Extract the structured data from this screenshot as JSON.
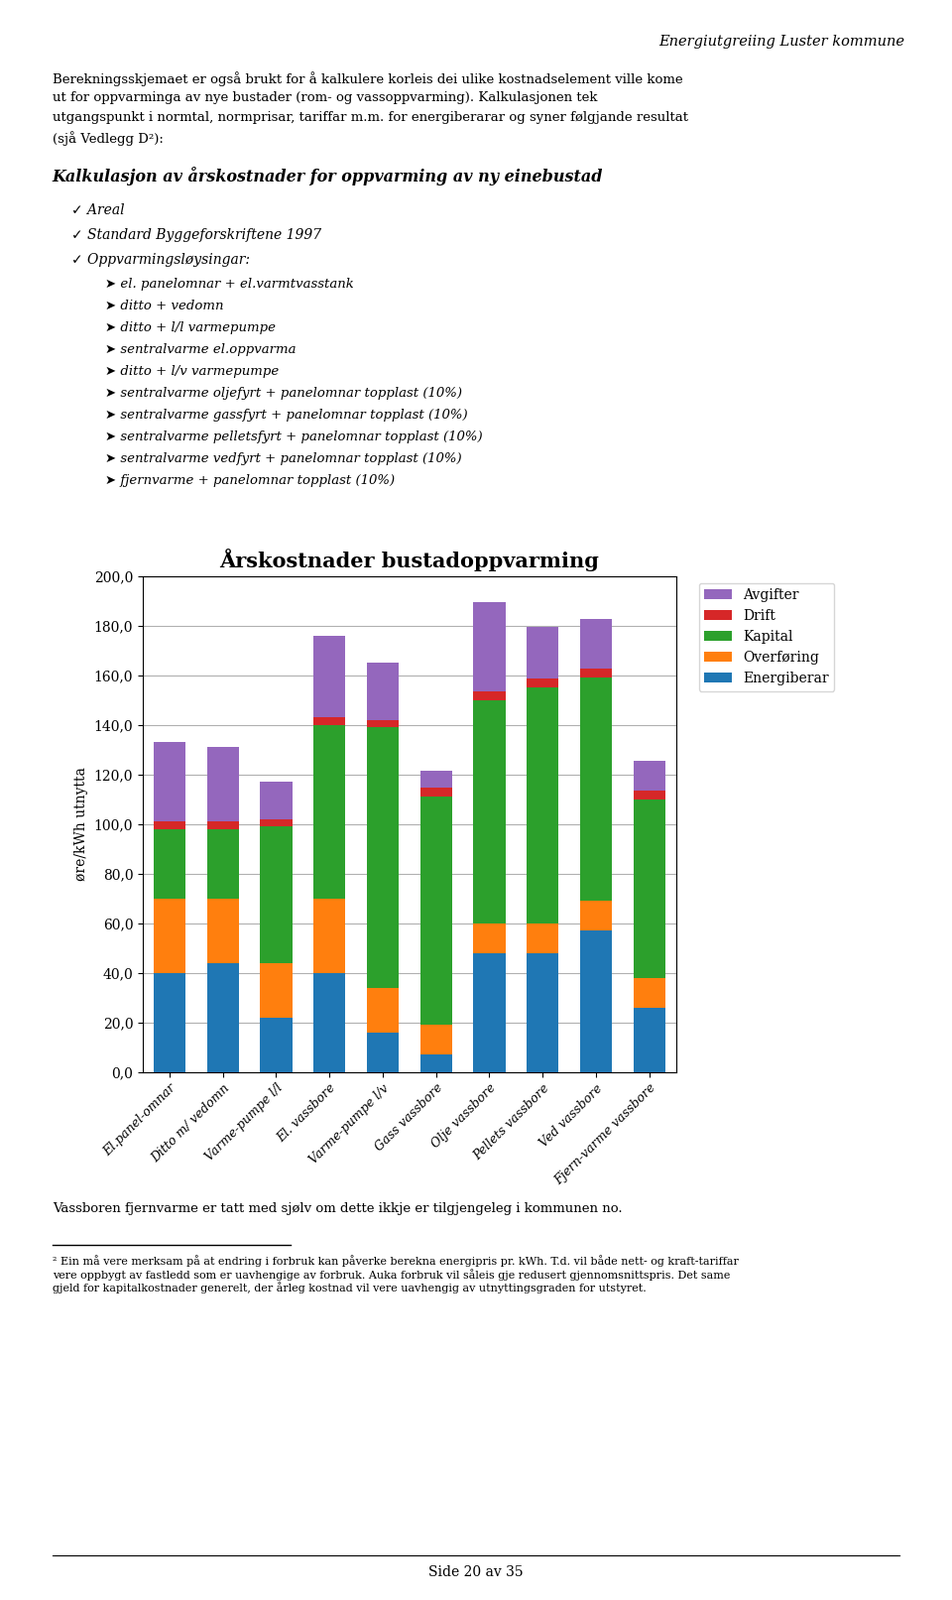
{
  "chart_data": {
    "type": "bar",
    "stacked": true,
    "title": "Årskostnader bustadoppvarming",
    "ylabel": "øre/kWh utnytta",
    "categories": [
      "El.panel-omnar",
      "Ditto m/ vedomn",
      "Varme-pumpe l/l",
      "El. vassbore",
      "Varme-pumpe l/v",
      "Gass vassbore",
      "Olje vassbore",
      "Pellets vassbore",
      "Ved vassbore",
      "Fjern-varme vassbore"
    ],
    "series": [
      {
        "name": "Energiberar",
        "values": [
          40.0,
          44.0,
          22.0,
          40.0,
          16.0,
          7.0,
          48.0,
          48.0,
          57.0,
          26.0
        ]
      },
      {
        "name": "Overføring",
        "values": [
          30.0,
          26.0,
          22.0,
          30.0,
          18.0,
          12.0,
          12.0,
          12.0,
          12.0,
          12.0
        ]
      },
      {
        "name": "Kapital",
        "values": [
          28.0,
          28.0,
          55.0,
          70.0,
          105.0,
          92.0,
          90.0,
          95.0,
          90.0,
          72.0
        ]
      },
      {
        "name": "Drift",
        "values": [
          3.0,
          3.0,
          3.0,
          3.0,
          3.0,
          3.5,
          3.5,
          3.5,
          3.5,
          3.5
        ]
      },
      {
        "name": "Avgifter",
        "values": [
          32.0,
          30.0,
          15.0,
          33.0,
          23.0,
          7.0,
          36.0,
          21.0,
          20.0,
          12.0
        ]
      }
    ],
    "ylim": [
      0,
      200
    ],
    "yticks": [
      {
        "value": 0,
        "label": "0,0"
      },
      {
        "value": 20,
        "label": "20,0"
      },
      {
        "value": 40,
        "label": "40,0"
      },
      {
        "value": 60,
        "label": "60,0"
      },
      {
        "value": 80,
        "label": "80,0"
      },
      {
        "value": 100,
        "label": "100,0"
      },
      {
        "value": 120,
        "label": "120,0"
      },
      {
        "value": 140,
        "label": "140,0"
      },
      {
        "value": 160,
        "label": "160,0"
      },
      {
        "value": 180,
        "label": "180,0"
      },
      {
        "value": 200,
        "label": "200,0"
      }
    ],
    "grid": true,
    "legend": "upper left",
    "annotations": [
      "Energiutgreiing Luster kommune",
      "Berekningsskjemaet er også brukt for å kalkulere korleis dei ulike kostnadselement ville kome",
      "ut for oppvarminga av nye bustader (rom- og vassoppvarming). Kalkulasjonen tek",
      "utgangspunkt i normtal, normprisar, tariffar m.m. for energiberarar og syner følgjande resultat",
      "(sjå Vedlegg D²):",
      "Kalkulasjon av årskostnader for oppvarming av ny einebustad",
      "✓ Areal",
      "✓ Standard Byggeforskriftene 1997",
      "✓ Oppvarmingsløysingar:",
      "➤ el. panelomnar + el.varmtvasstank",
      "➤ ditto + vedomn",
      "➤ ditto + l/l varmepumpe",
      "➤ sentralvarme el.oppvarma",
      "➤ ditto + l/v varmepumpe",
      "➤ sentralvarme oljefyrt + panelomnar topplast (10%)",
      "➤ sentralvarme gassfyrt + panelomnar topplast (10%)",
      "➤ sentralvarme pelletsfyrt + panelomnar topplast (10%)",
      "➤ sentralvarme vedfyrt + panelomnar topplast (10%)",
      "➤ fjernvarme + panelomnar topplast (10%)",
      "Vassboren fjernvarme er tatt med sjølv om dette ikkje er tilgjengeleg i kommunen no.",
      "² Ein må vere merksam på at endring i forbruk kan påverke berekna energipris pr. kWh. T.d. vil både nett- og kraft-tariffar\nvere oppbygt av fastledd som er uavhengige av forbruk. Auka forbruk vil såleis gje redusert gjennomsnittspris. Det same\ngjeld for kapitalkostnader generelt, der årleg kostnad vil vere uavhengig av utnyttingsgraden for utstyret.",
      "Side 20 av 35"
    ]
  }
}
